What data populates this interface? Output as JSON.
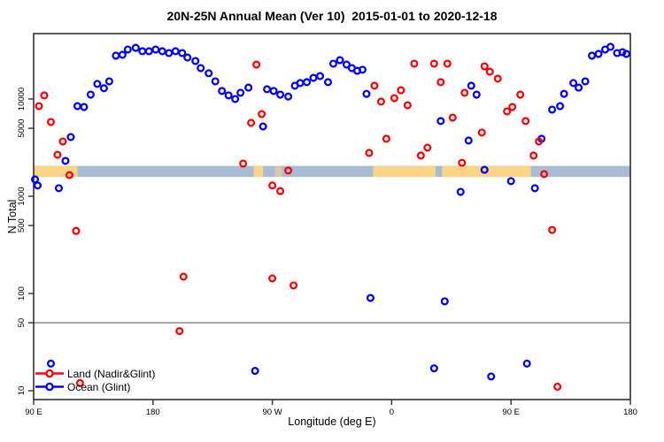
{
  "title": "20N-25N Annual Mean (Ver 10)  2015-01-01 to 2020-12-18",
  "legend": {
    "items": [
      {
        "label": "Land (Nadir&Glint)",
        "color": "#ff0000"
      },
      {
        "label": "Ocean (Glint)",
        "color": "#0000ff"
      }
    ]
  },
  "colors": {
    "land_points": "#ff0000",
    "ocean_points": "#0000ff",
    "band_ocean": "#a9bcd6",
    "band_land": "#fbd687",
    "reference_line": "#8c8c8c",
    "axis": "#303030"
  },
  "chart_data": {
    "type": "scatter",
    "title": "20N-25N Annual Mean (Ver 10)  2015-01-01 to 2020-12-18",
    "x_axis": {
      "label": "Longitude (deg E)",
      "range_deg": [
        90,
        540
      ],
      "note": "axis wraps eastward from 90E through 180, 90W, 0, 90E to 180",
      "ticks": [
        {
          "deg": 90,
          "label": "90 E"
        },
        {
          "deg": 180,
          "label": "180"
        },
        {
          "deg": 270,
          "label": "90 W"
        },
        {
          "deg": 360,
          "label": "0"
        },
        {
          "deg": 450,
          "label": "90 E"
        },
        {
          "deg": 540,
          "label": "180"
        }
      ]
    },
    "y_axis": {
      "label": "N Total",
      "scale": "log10",
      "range": [
        10,
        47000
      ],
      "ticks": [
        {
          "v": 10000,
          "label": "10000"
        },
        {
          "v": 5000,
          "label": "5000"
        },
        {
          "v": 1000,
          "label": "1000"
        },
        {
          "v": 500,
          "label": "500"
        },
        {
          "v": 100,
          "label": "100"
        },
        {
          "v": 50,
          "label": "50"
        },
        {
          "v": 10,
          "label": "10"
        }
      ]
    },
    "reference_line_y": 50,
    "surface_band": {
      "description": "land/ocean strip along 20N-25N",
      "n_range": [
        1580,
        2050
      ],
      "ocean_segment_deg": [
        90,
        540
      ],
      "land_segments_deg": [
        [
          90,
          123
        ],
        [
          256,
          263
        ],
        [
          346,
          393
        ],
        [
          398,
          465
        ]
      ],
      "faint_land_segments_deg": [
        [
          272,
          277
        ]
      ]
    },
    "series": [
      {
        "name": "Land (Nadir&Glint)",
        "color": "#ff0000",
        "points": [
          [
            98,
            10900
          ],
          [
            94,
            8450
          ],
          [
            103,
            5800
          ],
          [
            112,
            3660
          ],
          [
            108,
            2670
          ],
          [
            117,
            1650
          ],
          [
            122,
            440
          ],
          [
            125,
            12
          ],
          [
            200,
            41
          ],
          [
            203,
            149
          ],
          [
            248,
            2170
          ],
          [
            254,
            5690
          ],
          [
            258,
            22600
          ],
          [
            262,
            7000
          ],
          [
            270,
            1290
          ],
          [
            276,
            1130
          ],
          [
            282,
            1840
          ],
          [
            270,
            143
          ],
          [
            286,
            121
          ],
          [
            343,
            2790
          ],
          [
            347,
            13700
          ],
          [
            352,
            9400
          ],
          [
            356,
            3900
          ],
          [
            362,
            10200
          ],
          [
            367,
            12300
          ],
          [
            372,
            8630
          ],
          [
            377,
            23100
          ],
          [
            382,
            2620
          ],
          [
            387,
            3160
          ],
          [
            392,
            23100
          ],
          [
            397,
            14900
          ],
          [
            402,
            23100
          ],
          [
            406,
            6440
          ],
          [
            413,
            2210
          ],
          [
            415,
            11600
          ],
          [
            428,
            4520
          ],
          [
            430,
            21700
          ],
          [
            434,
            19100
          ],
          [
            440,
            16200
          ],
          [
            447,
            7460
          ],
          [
            451,
            8280
          ],
          [
            457,
            11100
          ],
          [
            461,
            5930
          ],
          [
            467,
            2620
          ],
          [
            471,
            3660
          ],
          [
            475,
            1690
          ],
          [
            481,
            450
          ],
          [
            485,
            11
          ]
        ]
      },
      {
        "name": "Ocean (Glint)",
        "color": "#0000ff",
        "points": [
          [
            91,
            1490
          ],
          [
            93,
            1290
          ],
          [
            109,
            1210
          ],
          [
            114,
            2310
          ],
          [
            118,
            4060
          ],
          [
            123,
            8450
          ],
          [
            128,
            8280
          ],
          [
            133,
            11100
          ],
          [
            138,
            14300
          ],
          [
            143,
            12900
          ],
          [
            147,
            15200
          ],
          [
            152,
            27900
          ],
          [
            157,
            28500
          ],
          [
            161,
            32300
          ],
          [
            167,
            33600
          ],
          [
            172,
            31000
          ],
          [
            177,
            31000
          ],
          [
            182,
            32300
          ],
          [
            187,
            31000
          ],
          [
            192,
            29700
          ],
          [
            197,
            31000
          ],
          [
            202,
            29700
          ],
          [
            206,
            26700
          ],
          [
            212,
            24600
          ],
          [
            216,
            20800
          ],
          [
            222,
            18400
          ],
          [
            227,
            15200
          ],
          [
            232,
            12100
          ],
          [
            237,
            10900
          ],
          [
            242,
            10000
          ],
          [
            246,
            11600
          ],
          [
            252,
            13100
          ],
          [
            263,
            5220
          ],
          [
            266,
            12600
          ],
          [
            271,
            12100
          ],
          [
            276,
            11100
          ],
          [
            282,
            10600
          ],
          [
            287,
            13700
          ],
          [
            291,
            14600
          ],
          [
            296,
            14900
          ],
          [
            301,
            16500
          ],
          [
            306,
            17200
          ],
          [
            312,
            14900
          ],
          [
            316,
            23100
          ],
          [
            321,
            25100
          ],
          [
            326,
            22600
          ],
          [
            330,
            20800
          ],
          [
            334,
            19500
          ],
          [
            338,
            20000
          ],
          [
            341,
            11300
          ],
          [
            397,
            5930
          ],
          [
            412,
            1110
          ],
          [
            418,
            3740
          ],
          [
            420,
            13700
          ],
          [
            424,
            11100
          ],
          [
            430,
            1870
          ],
          [
            450,
            1430
          ],
          [
            468,
            1210
          ],
          [
            473,
            3900
          ],
          [
            481,
            7780
          ],
          [
            487,
            8450
          ],
          [
            490,
            11300
          ],
          [
            497,
            14600
          ],
          [
            501,
            13100
          ],
          [
            506,
            15200
          ],
          [
            511,
            27900
          ],
          [
            516,
            29100
          ],
          [
            521,
            32300
          ],
          [
            525,
            34400
          ],
          [
            530,
            29700
          ],
          [
            534,
            30300
          ],
          [
            537,
            29100
          ],
          [
            103,
            19
          ],
          [
            257,
            16
          ],
          [
            344,
            90
          ],
          [
            392,
            17
          ],
          [
            400,
            83
          ],
          [
            435,
            14
          ],
          [
            462,
            19
          ]
        ]
      }
    ]
  }
}
